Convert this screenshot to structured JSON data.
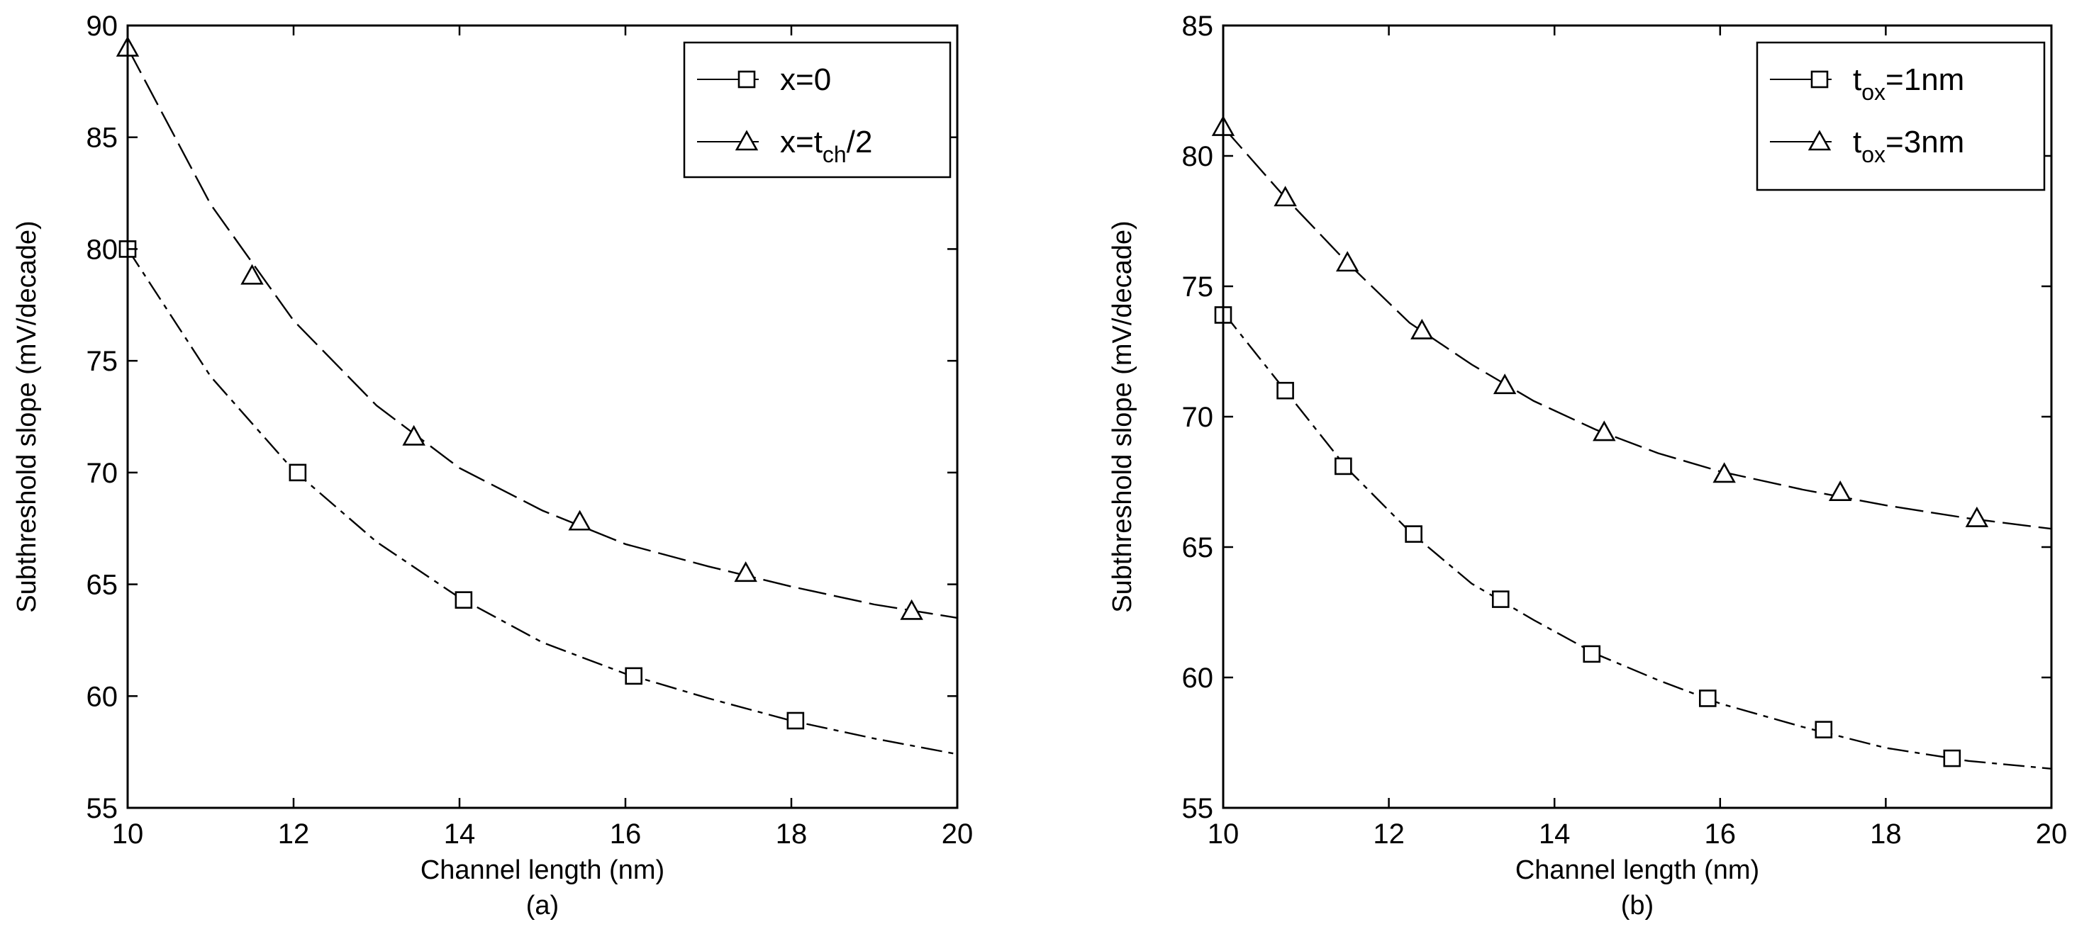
{
  "chart_data": [
    {
      "type": "line",
      "panel_label": "(a)",
      "xlabel": "Channel length (nm)",
      "ylabel": "Subthreshold slope (mV/decade)",
      "xlim": [
        10,
        20
      ],
      "ylim": [
        55,
        90
      ],
      "xticks": [
        "10",
        "12",
        "14",
        "16",
        "18",
        "20"
      ],
      "yticks": [
        "55",
        "60",
        "65",
        "70",
        "75",
        "80",
        "85",
        "90"
      ],
      "grid": false,
      "legend_position": "top-right",
      "series": [
        {
          "name": "x=0",
          "legend_text": "x=0",
          "legend_sub": "",
          "legend_tail": "",
          "marker": "square",
          "curve": [
            [
              10,
              80.0
            ],
            [
              11,
              74.3
            ],
            [
              12,
              70.1
            ],
            [
              13,
              66.9
            ],
            [
              14,
              64.4
            ],
            [
              15,
              62.4
            ],
            [
              16,
              61.0
            ],
            [
              17,
              59.9
            ],
            [
              18,
              58.9
            ],
            [
              19,
              58.1
            ],
            [
              20,
              57.4
            ]
          ],
          "markers": [
            [
              10,
              80.0
            ],
            [
              12.05,
              70.0
            ],
            [
              14.05,
              64.3
            ],
            [
              16.1,
              60.9
            ],
            [
              18.05,
              58.9
            ]
          ]
        },
        {
          "name": "x=t_ch/2",
          "legend_text": "x=t",
          "legend_sub": "ch",
          "legend_tail": "/2",
          "marker": "triangle",
          "curve": [
            [
              10,
              89.0
            ],
            [
              11,
              82.0
            ],
            [
              12,
              76.8
            ],
            [
              13,
              73.0
            ],
            [
              14,
              70.2
            ],
            [
              15,
              68.3
            ],
            [
              16,
              66.8
            ],
            [
              17,
              65.8
            ],
            [
              18,
              64.9
            ],
            [
              19,
              64.1
            ],
            [
              20,
              63.5
            ]
          ],
          "markers": [
            [
              10,
              89.0
            ],
            [
              11.5,
              78.8
            ],
            [
              13.45,
              71.6
            ],
            [
              15.45,
              67.8
            ],
            [
              17.45,
              65.5
            ],
            [
              19.45,
              63.8
            ]
          ]
        }
      ]
    },
    {
      "type": "line",
      "panel_label": "(b)",
      "xlabel": "Channel length (nm)",
      "ylabel": "Subthreshold slope (mV/decade)",
      "xlim": [
        10,
        20
      ],
      "ylim": [
        55,
        85
      ],
      "xticks": [
        "10",
        "12",
        "14",
        "16",
        "18",
        "20"
      ],
      "yticks": [
        "55",
        "60",
        "65",
        "70",
        "75",
        "80",
        "85"
      ],
      "grid": false,
      "legend_position": "top-right",
      "series": [
        {
          "name": "t_ox=1nm",
          "legend_text": "t",
          "legend_sub": "ox",
          "legend_tail": "=1nm",
          "marker": "square",
          "curve": [
            [
              10,
              74.0
            ],
            [
              10.75,
              71.0
            ],
            [
              11.5,
              68.0
            ],
            [
              12.25,
              65.6
            ],
            [
              13,
              63.6
            ],
            [
              13.75,
              62.2
            ],
            [
              14.5,
              60.9
            ],
            [
              15.25,
              59.9
            ],
            [
              16,
              59.0
            ],
            [
              17,
              58.1
            ],
            [
              18,
              57.3
            ],
            [
              19,
              56.8
            ],
            [
              20,
              56.5
            ]
          ],
          "markers": [
            [
              10,
              73.9
            ],
            [
              10.75,
              71.0
            ],
            [
              11.45,
              68.1
            ],
            [
              12.3,
              65.5
            ],
            [
              13.35,
              63.0
            ],
            [
              14.45,
              60.9
            ],
            [
              15.85,
              59.2
            ],
            [
              17.25,
              58.0
            ],
            [
              18.8,
              56.9
            ]
          ]
        },
        {
          "name": "t_ox=3nm",
          "legend_text": "t",
          "legend_sub": "ox",
          "legend_tail": "=3nm",
          "marker": "triangle",
          "curve": [
            [
              10,
              81.1
            ],
            [
              10.75,
              78.4
            ],
            [
              11.5,
              75.9
            ],
            [
              12.25,
              73.6
            ],
            [
              13,
              72.0
            ],
            [
              13.75,
              70.6
            ],
            [
              14.5,
              69.5
            ],
            [
              15.25,
              68.6
            ],
            [
              16,
              67.9
            ],
            [
              17,
              67.2
            ],
            [
              18,
              66.6
            ],
            [
              19,
              66.1
            ],
            [
              20,
              65.7
            ]
          ],
          "markers": [
            [
              10,
              81.1
            ],
            [
              10.75,
              78.4
            ],
            [
              11.5,
              75.9
            ],
            [
              12.4,
              73.3
            ],
            [
              13.4,
              71.2
            ],
            [
              14.6,
              69.4
            ],
            [
              16.05,
              67.8
            ],
            [
              17.45,
              67.1
            ],
            [
              19.1,
              66.1
            ]
          ]
        }
      ]
    }
  ]
}
